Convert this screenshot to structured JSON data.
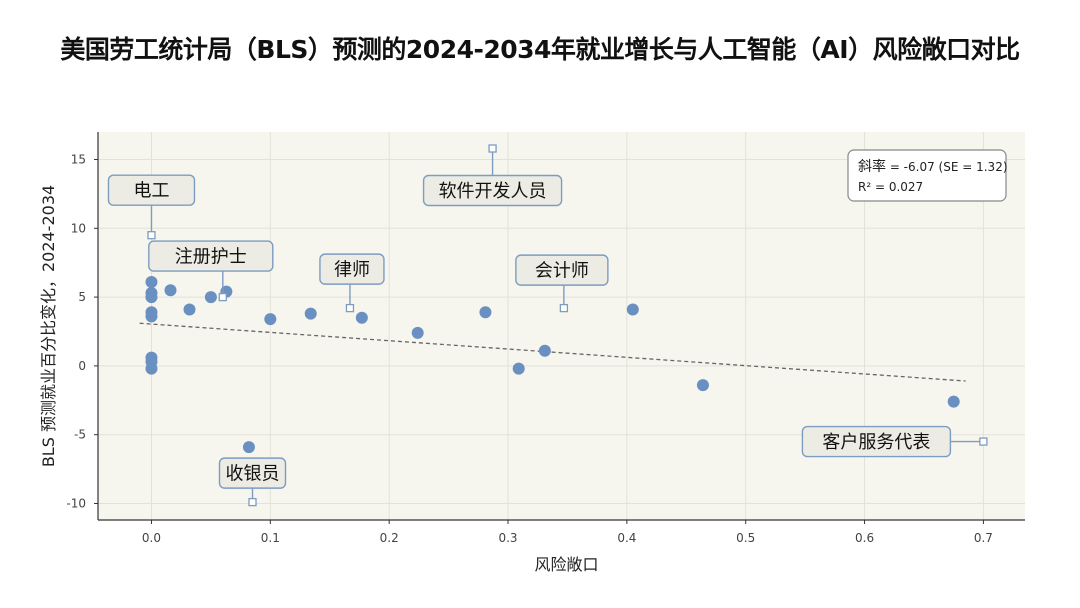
{
  "chart_data": {
    "type": "scatter",
    "title": "美国劳工统计局（BLS）预测的2024-2034年就业增长与人工智能（AI）风险敞口对比",
    "xlabel": "风险敞口",
    "ylabel": "BLS 预测就业百分比变化，2024-2034",
    "xlim": [
      -0.045,
      0.735
    ],
    "ylim": [
      -11.2,
      17.0
    ],
    "xticks": [
      "0.0",
      "0.1",
      "0.2",
      "0.3",
      "0.4",
      "0.5",
      "0.6",
      "0.7"
    ],
    "xtick_values": [
      0,
      0.1,
      0.2,
      0.3,
      0.4,
      0.5,
      0.6,
      0.7
    ],
    "yticks": [
      "15",
      "10",
      "5",
      "0",
      "-5",
      "-10"
    ],
    "ytick_values": [
      15,
      10,
      5,
      0,
      -5,
      -10
    ],
    "grid": true,
    "points": [
      {
        "x": 0.0,
        "y": 6.1
      },
      {
        "x": 0.0,
        "y": 5.3
      },
      {
        "x": 0.0,
        "y": 5.0
      },
      {
        "x": 0.0,
        "y": 3.9
      },
      {
        "x": 0.0,
        "y": 3.6
      },
      {
        "x": 0.0,
        "y": 0.6
      },
      {
        "x": 0.0,
        "y": 0.3
      },
      {
        "x": 0.0,
        "y": -0.2
      },
      {
        "x": 0.016,
        "y": 5.5
      },
      {
        "x": 0.032,
        "y": 4.1
      },
      {
        "x": 0.05,
        "y": 5.0
      },
      {
        "x": 0.063,
        "y": 5.4
      },
      {
        "x": 0.1,
        "y": 3.4
      },
      {
        "x": 0.134,
        "y": 3.8
      },
      {
        "x": 0.177,
        "y": 3.5
      },
      {
        "x": 0.224,
        "y": 2.4
      },
      {
        "x": 0.281,
        "y": 3.9
      },
      {
        "x": 0.309,
        "y": -0.2
      },
      {
        "x": 0.331,
        "y": 1.1
      },
      {
        "x": 0.405,
        "y": 4.1
      },
      {
        "x": 0.464,
        "y": -1.4
      },
      {
        "x": 0.675,
        "y": -2.6
      },
      {
        "x": 0.082,
        "y": -5.9
      }
    ],
    "trendline": {
      "x": [
        -0.01,
        0.685
      ],
      "y": [
        3.1,
        -1.1
      ],
      "style": "dashed"
    },
    "annotations": [
      {
        "label": "电工",
        "x": 0.0,
        "y": 9.5
      },
      {
        "label": "注册护士",
        "x": 0.06,
        "y": 5.0
      },
      {
        "label": "律师",
        "x": 0.167,
        "y": 4.2
      },
      {
        "label": "软件开发人员",
        "x": 0.287,
        "y": 15.8
      },
      {
        "label": "会计师",
        "x": 0.347,
        "y": 4.2
      },
      {
        "label": "收银员",
        "x": 0.085,
        "y": -9.9
      },
      {
        "label": "客户服务代表",
        "x": 0.7,
        "y": -5.5
      }
    ],
    "stats": {
      "slope_label": "斜率",
      "slope_value": "= -6.07 (SE = 1.32)",
      "r2": "R² = 0.027"
    },
    "colors": {
      "point": "#6a8fc1",
      "plot_bg": "#f6f6ee",
      "grid": "#e2e2d8",
      "annotation_bg": "#ecece4",
      "annotation_border": "#7d9cc2",
      "trend": "#666666"
    }
  }
}
